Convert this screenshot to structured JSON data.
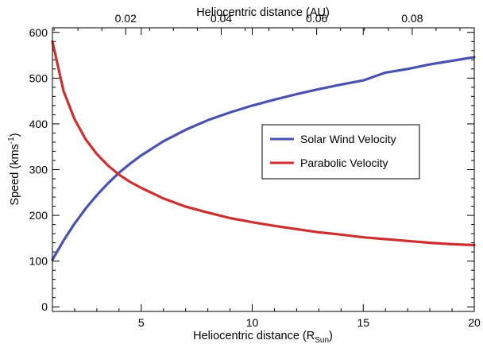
{
  "chart_data": {
    "type": "line",
    "x": [
      1,
      1.5,
      2,
      2.5,
      3,
      3.5,
      4,
      4.5,
      5,
      6,
      7,
      8,
      9,
      10,
      11,
      12,
      13,
      14,
      15,
      16,
      17,
      18,
      19,
      20
    ],
    "series": [
      {
        "name": "Solar Wind Velocity",
        "color": "#4a52b0",
        "values": [
          103,
          145,
          182,
          215,
          244,
          270,
          293,
          313,
          331,
          362,
          387,
          408,
          425,
          440,
          453,
          465,
          476,
          486,
          495,
          512,
          520,
          530,
          538,
          546
        ]
      },
      {
        "name": "Parabolic Velocity",
        "color": "#cc3030",
        "values": [
          580,
          472,
          410,
          366,
          334,
          309,
          289,
          273,
          260,
          237,
          219,
          206,
          194,
          185,
          177,
          170,
          163,
          158,
          152,
          148,
          144,
          140,
          137,
          135
        ]
      }
    ],
    "xlabel": "Heliocentric distance (R",
    "xlabel_sub": "Sun",
    "xlabel_close": ")",
    "ylabel": "Speed (kms",
    "ylabel_sup": "-1",
    "ylabel_close": ")",
    "x2label": "Heliocentric distance (AU)",
    "xlim": [
      1,
      20
    ],
    "ylim": [
      -10,
      610
    ],
    "x2lim": [
      0.00465,
      0.093
    ],
    "xticks": [
      "5",
      "10",
      "15",
      "20"
    ],
    "xtick_values": [
      5,
      10,
      15,
      20
    ],
    "x2ticks": [
      "0.02",
      "0.04",
      "0.06",
      "0.08"
    ],
    "x2tick_values": [
      0.02,
      0.04,
      0.06,
      0.08
    ],
    "yticks": [
      "0",
      "100",
      "200",
      "300",
      "400",
      "500",
      "600"
    ],
    "ytick_values": [
      0,
      100,
      200,
      300,
      400,
      500,
      600
    ],
    "grid": false,
    "legend_position": "center-right"
  }
}
